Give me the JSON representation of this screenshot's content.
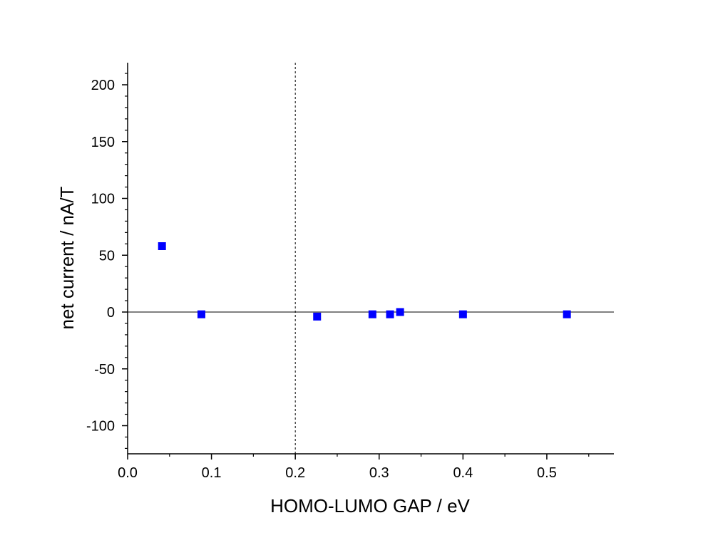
{
  "chart_data": {
    "type": "scatter",
    "xlabel": "HOMO-LUMO GAP / eV",
    "ylabel": "net current / nA/T",
    "xlim": [
      0.0,
      0.58
    ],
    "ylim": [
      -125,
      220
    ],
    "xticks": [
      0.0,
      0.1,
      0.2,
      0.3,
      0.4,
      0.5
    ],
    "xtick_labels": [
      "0.0",
      "0.1",
      "0.2",
      "0.3",
      "0.4",
      "0.5"
    ],
    "yticks": [
      -100,
      -50,
      0,
      50,
      100,
      150,
      200
    ],
    "ytick_labels": [
      "-100",
      "-50",
      "0",
      "50",
      "100",
      "150",
      "200"
    ],
    "reference_lines": {
      "horizontal_y": 0,
      "vertical_x_dashed": 0.2
    },
    "grid": false,
    "marker": "square",
    "color": "#0000ff",
    "series": [
      {
        "x": [
          0.041,
          0.088,
          0.226,
          0.292,
          0.313,
          0.325,
          0.4,
          0.524
        ],
        "y": [
          58,
          -2,
          -4,
          -2,
          -2,
          0,
          -2,
          -2
        ]
      }
    ]
  }
}
